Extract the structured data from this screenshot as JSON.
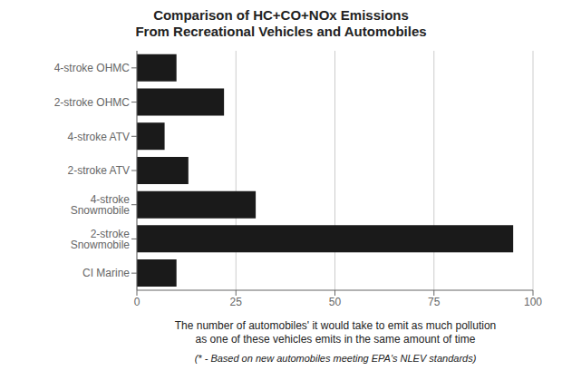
{
  "chart_data": {
    "type": "bar",
    "orientation": "horizontal",
    "title": "Comparison of HC+CO+NOx Emissions\nFrom Recreational Vehicles and Automobiles",
    "categories": [
      "CI Marine",
      "2-stroke Snowmobile",
      "4-stroke Snowmobile",
      "2-stroke ATV",
      "4-stroke ATV",
      "2-stroke OHMC",
      "4-stroke OHMC"
    ],
    "values": [
      10,
      95,
      30,
      13,
      7,
      22,
      10
    ],
    "color": "#1a1a1a",
    "xlim": [
      0,
      100
    ],
    "xticks": [
      0,
      25,
      50,
      75,
      100
    ],
    "xlabel": "The number of automobiles' it would take to emit as much pollution\nas one of these vehicles emits in the same amount of time",
    "annotations": [
      "(* - Based on new automobiles meeting EPA's NLEV standards)"
    ],
    "grid": true
  }
}
